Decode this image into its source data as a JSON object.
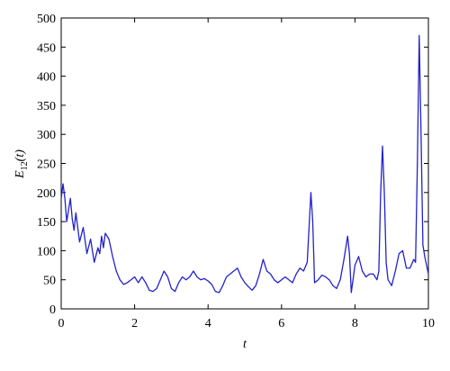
{
  "chart_data": {
    "type": "line",
    "x_label": "t",
    "y_label_parts": [
      "E",
      "12",
      "(t)"
    ],
    "x": [
      0,
      0.05,
      0.1,
      0.15,
      0.25,
      0.3,
      0.35,
      0.4,
      0.5,
      0.6,
      0.7,
      0.8,
      0.9,
      1.0,
      1.05,
      1.1,
      1.15,
      1.2,
      1.3,
      1.4,
      1.5,
      1.6,
      1.7,
      1.8,
      1.9,
      2.0,
      2.1,
      2.2,
      2.3,
      2.4,
      2.5,
      2.6,
      2.7,
      2.8,
      2.9,
      3.0,
      3.1,
      3.2,
      3.3,
      3.4,
      3.5,
      3.6,
      3.7,
      3.8,
      3.9,
      4.0,
      4.1,
      4.2,
      4.3,
      4.4,
      4.5,
      4.6,
      4.7,
      4.8,
      4.9,
      5.0,
      5.1,
      5.2,
      5.3,
      5.4,
      5.5,
      5.6,
      5.7,
      5.8,
      5.9,
      6.0,
      6.1,
      6.2,
      6.3,
      6.4,
      6.5,
      6.6,
      6.7,
      6.8,
      6.85,
      6.9,
      7.0,
      7.1,
      7.2,
      7.3,
      7.4,
      7.5,
      7.6,
      7.7,
      7.8,
      7.85,
      7.9,
      8.0,
      8.1,
      8.2,
      8.3,
      8.4,
      8.5,
      8.6,
      8.65,
      8.7,
      8.75,
      8.8,
      8.85,
      8.9,
      9.0,
      9.1,
      9.2,
      9.3,
      9.4,
      9.5,
      9.6,
      9.65,
      9.7,
      9.75,
      9.8,
      9.85,
      9.9,
      10.0
    ],
    "series": [
      {
        "color": "#2222cc",
        "values": [
          190,
          215,
          190,
          150,
          190,
          155,
          135,
          165,
          115,
          140,
          95,
          120,
          80,
          105,
          95,
          125,
          105,
          130,
          120,
          90,
          65,
          50,
          42,
          45,
          50,
          55,
          45,
          55,
          45,
          32,
          30,
          35,
          50,
          65,
          55,
          35,
          30,
          45,
          55,
          50,
          55,
          65,
          55,
          50,
          52,
          48,
          42,
          30,
          28,
          40,
          55,
          60,
          65,
          70,
          55,
          45,
          38,
          32,
          40,
          60,
          85,
          65,
          60,
          50,
          45,
          50,
          55,
          50,
          45,
          60,
          70,
          65,
          80,
          200,
          150,
          45,
          50,
          58,
          55,
          50,
          40,
          35,
          50,
          85,
          125,
          95,
          28,
          75,
          90,
          65,
          55,
          60,
          60,
          50,
          65,
          200,
          280,
          200,
          80,
          50,
          40,
          65,
          95,
          100,
          70,
          70,
          85,
          80,
          250,
          470,
          300,
          110,
          90,
          60
        ]
      }
    ],
    "xlim": [
      0,
      10
    ],
    "ylim": [
      0,
      500
    ],
    "xticks": [
      0,
      2,
      4,
      6,
      8,
      10
    ],
    "yticks": [
      0,
      50,
      100,
      150,
      200,
      250,
      300,
      350,
      400,
      450,
      500
    ]
  }
}
